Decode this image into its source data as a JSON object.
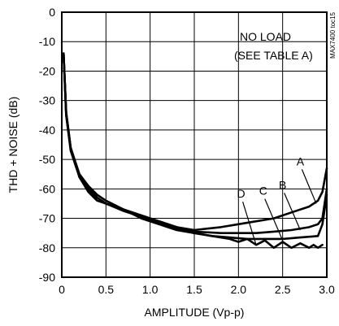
{
  "chart_data": {
    "type": "line",
    "xlabel": "AMPLITUDE (Vp-p)",
    "ylabel": "THD + NOISE (dB)",
    "xlim": [
      0,
      3.0
    ],
    "ylim": [
      -90,
      0
    ],
    "x_ticks": [
      "0",
      "0.5",
      "1.0",
      "1.5",
      "2.0",
      "2.5",
      "3.0"
    ],
    "y_ticks": [
      "0",
      "-10",
      "-20",
      "-30",
      "-40",
      "-50",
      "-60",
      "-70",
      "-80",
      "-90"
    ],
    "grid": true,
    "annotation_lines": [
      "NO LOAD",
      "(SEE TABLE A)"
    ],
    "side_note": "MAX7400 toc15",
    "series": [
      {
        "name": "A",
        "x": [
          0.02,
          0.05,
          0.1,
          0.2,
          0.3,
          0.4,
          0.5,
          0.7,
          1.0,
          1.3,
          1.5,
          1.8,
          2.0,
          2.2,
          2.4,
          2.6,
          2.8,
          2.9,
          2.95,
          3.0
        ],
        "y": [
          -14,
          -34,
          -46,
          -55,
          -59,
          -62,
          -64,
          -67,
          -70,
          -73,
          -74,
          -73,
          -72,
          -71,
          -70,
          -68,
          -66,
          -64,
          -61,
          -53
        ]
      },
      {
        "name": "B",
        "x": [
          0.02,
          0.05,
          0.1,
          0.2,
          0.3,
          0.4,
          0.5,
          0.7,
          1.0,
          1.3,
          1.5,
          1.8,
          2.0,
          2.2,
          2.4,
          2.6,
          2.8,
          2.9,
          2.95,
          3.0
        ],
        "y": [
          -14,
          -34,
          -46,
          -56,
          -60,
          -63,
          -65,
          -67,
          -70,
          -73,
          -74.5,
          -75,
          -75,
          -75,
          -74.5,
          -74,
          -73,
          -72,
          -70,
          -60
        ]
      },
      {
        "name": "C",
        "x": [
          0.02,
          0.05,
          0.1,
          0.2,
          0.3,
          0.4,
          0.5,
          0.7,
          0.9,
          1.1,
          1.3,
          1.5,
          1.7,
          1.9,
          2.1,
          2.3,
          2.5,
          2.7,
          2.9,
          2.95,
          3.0
        ],
        "y": [
          -14,
          -35,
          -46,
          -56,
          -60,
          -63,
          -65,
          -67.5,
          -69.5,
          -71.5,
          -73.5,
          -75,
          -76,
          -76.5,
          -77,
          -77,
          -77,
          -76.5,
          -76,
          -72,
          -62
        ]
      },
      {
        "name": "D",
        "x": [
          0.02,
          0.05,
          0.1,
          0.2,
          0.3,
          0.4,
          0.5,
          0.7,
          0.9,
          1.1,
          1.3,
          1.5,
          1.7,
          1.9,
          2.0,
          2.1,
          2.2,
          2.3,
          2.4,
          2.5,
          2.6,
          2.7,
          2.8,
          2.85,
          2.9,
          2.95
        ],
        "y": [
          -14,
          -35,
          -47,
          -56,
          -61,
          -64,
          -65,
          -67,
          -70,
          -72,
          -74,
          -75,
          -76,
          -77,
          -78,
          -77,
          -79,
          -77.5,
          -80,
          -78,
          -80,
          -78.5,
          -80,
          -79,
          -80,
          -79
        ]
      }
    ],
    "curve_labels": [
      {
        "text": "A",
        "x": 2.7,
        "y": -52,
        "target_x": 2.88,
        "target_y": -65
      },
      {
        "text": "B",
        "x": 2.5,
        "y": -60,
        "target_x": 2.7,
        "target_y": -74
      },
      {
        "text": "C",
        "x": 2.28,
        "y": -62,
        "target_x": 2.5,
        "target_y": -77.5
      },
      {
        "text": "D",
        "x": 2.03,
        "y": -63,
        "target_x": 2.2,
        "target_y": -79
      }
    ]
  }
}
